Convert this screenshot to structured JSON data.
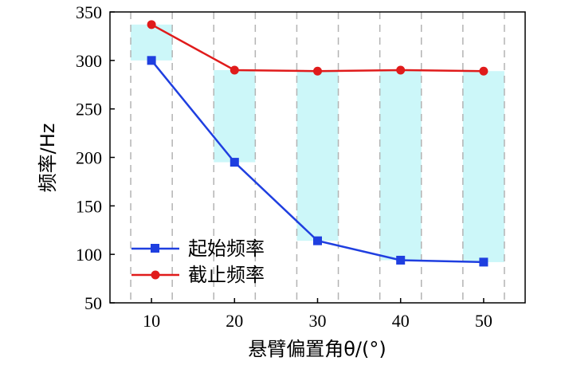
{
  "chart_data": {
    "type": "line",
    "xlabel": "悬臂偏置角θ/(°)",
    "ylabel": "频率/Hz",
    "xlim": [
      5,
      55
    ],
    "ylim": [
      50,
      350
    ],
    "xticks": [
      10,
      20,
      30,
      40,
      50
    ],
    "yticks": [
      50,
      100,
      150,
      200,
      250,
      300,
      350
    ],
    "x": [
      10,
      20,
      30,
      40,
      50
    ],
    "series": [
      {
        "name": "起始频率",
        "values": [
          300,
          195,
          114,
          94,
          92
        ],
        "color": "#1f3fe0",
        "marker": "square"
      },
      {
        "name": "截止频率",
        "values": [
          337,
          290,
          289,
          290,
          289
        ],
        "color": "#e01b1b",
        "marker": "circle"
      }
    ],
    "bands": [
      {
        "x_center": 10,
        "half_width": 2.5,
        "low": 300,
        "high": 337
      },
      {
        "x_center": 20,
        "half_width": 2.5,
        "low": 195,
        "high": 290
      },
      {
        "x_center": 30,
        "half_width": 2.5,
        "low": 114,
        "high": 289
      },
      {
        "x_center": 40,
        "half_width": 2.5,
        "low": 94,
        "high": 290
      },
      {
        "x_center": 50,
        "half_width": 2.5,
        "low": 92,
        "high": 289
      }
    ],
    "band_color": "#ccf7f9",
    "gridline_color": "#b3b3b3",
    "legend_position": "bottom-left"
  }
}
